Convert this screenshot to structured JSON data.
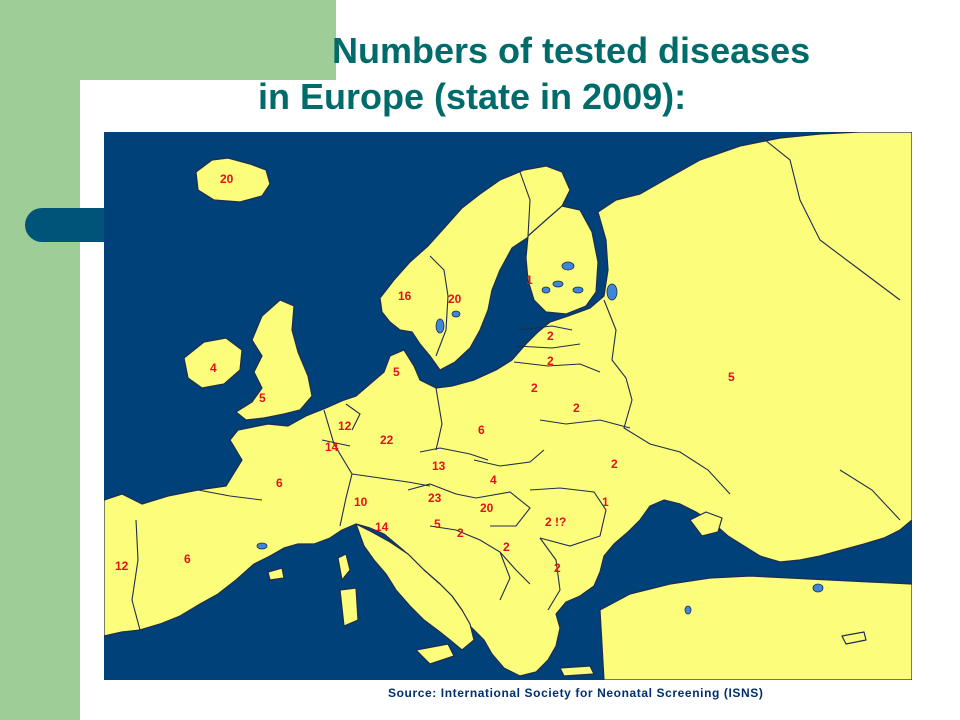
{
  "slide": {
    "title_line1": "Numbers of tested diseases",
    "title_line2": "in Europe (state in 2009):",
    "source": "Source: International Society for Neonatal Screening (ISNS)"
  },
  "map": {
    "colors": {
      "sea": "#00417a",
      "land": "#fdfd7c",
      "border": "#1e2d4f",
      "label": "#e0121b",
      "lakes": "#3e86d8"
    },
    "labels": [
      {
        "id": "iceland",
        "text": "20"
      },
      {
        "id": "norway",
        "text": "16"
      },
      {
        "id": "sweden",
        "text": "20"
      },
      {
        "id": "finland",
        "text": "1"
      },
      {
        "id": "estonia",
        "text": "2"
      },
      {
        "id": "latvia",
        "text": "2"
      },
      {
        "id": "lithuania",
        "text": "2"
      },
      {
        "id": "belarus",
        "text": "2"
      },
      {
        "id": "russia",
        "text": "5"
      },
      {
        "id": "ireland",
        "text": "4"
      },
      {
        "id": "uk",
        "text": "5"
      },
      {
        "id": "denmark",
        "text": "5"
      },
      {
        "id": "netherlands",
        "text": "12"
      },
      {
        "id": "belgium",
        "text": "14"
      },
      {
        "id": "germany",
        "text": "22"
      },
      {
        "id": "poland",
        "text": "6"
      },
      {
        "id": "ukraine",
        "text": "2"
      },
      {
        "id": "czech",
        "text": "13"
      },
      {
        "id": "slovakia",
        "text": "4"
      },
      {
        "id": "france",
        "text": "6"
      },
      {
        "id": "switzerland",
        "text": "10"
      },
      {
        "id": "austria",
        "text": "23"
      },
      {
        "id": "hungary",
        "text": "20"
      },
      {
        "id": "moldova",
        "text": "1"
      },
      {
        "id": "romania",
        "text": "2 !?"
      },
      {
        "id": "italy",
        "text": "14"
      },
      {
        "id": "slovenia",
        "text": "5"
      },
      {
        "id": "croatia",
        "text": "2"
      },
      {
        "id": "serbia",
        "text": "2"
      },
      {
        "id": "bulgaria",
        "text": "2"
      },
      {
        "id": "portugal",
        "text": "12"
      },
      {
        "id": "spain",
        "text": "6"
      }
    ]
  }
}
